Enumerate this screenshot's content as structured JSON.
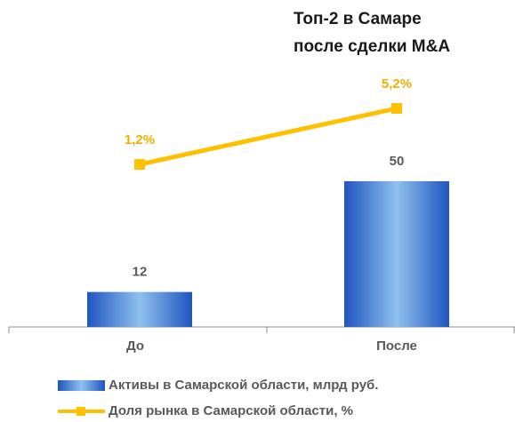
{
  "chart_data": {
    "type": "bar-line",
    "title": [
      "Топ-2 в Самаре",
      "после сделки M&A"
    ],
    "categories": [
      "До",
      "После"
    ],
    "series": [
      {
        "name": "Активы в Самарской области, млрд руб.",
        "type": "bar",
        "color": "#2a62c9",
        "values": [
          12,
          50
        ]
      },
      {
        "name": "Доля рынка в Самарской области, %",
        "type": "line",
        "axis": "y2",
        "color": "#ffc000",
        "values": [
          1.2,
          5.2
        ],
        "value_labels": [
          "1,2%",
          "5,2%"
        ]
      }
    ],
    "ylim": [
      0,
      100
    ],
    "y2lim": [
      -10.4,
      10.4
    ]
  }
}
